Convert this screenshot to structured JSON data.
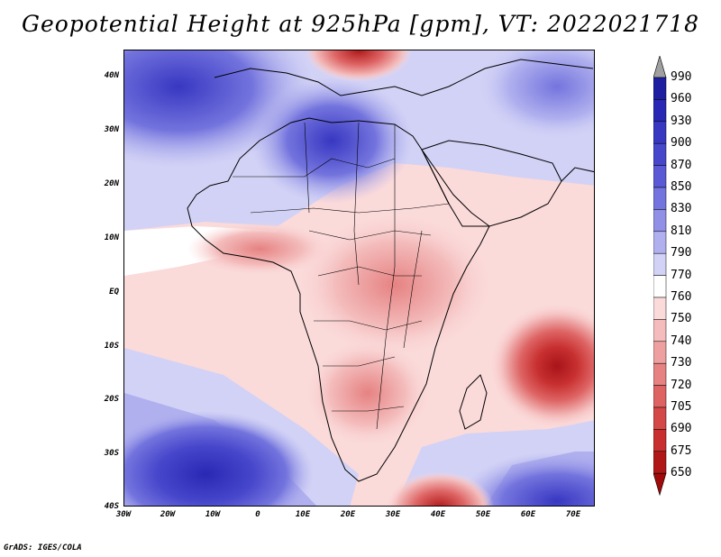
{
  "title": "Geopotential Height at 925hPa [gpm], VT: 2022021718",
  "credit": "GrADS: IGES/COLA",
  "lat_axis": {
    "labels": [
      "40N",
      "30N",
      "20N",
      "10N",
      "EQ",
      "10S",
      "20S",
      "30S",
      "40S"
    ],
    "values": [
      40,
      30,
      20,
      10,
      0,
      -10,
      -20,
      -30,
      -40
    ]
  },
  "lon_axis": {
    "labels": [
      "30W",
      "20W",
      "10W",
      "0",
      "10E",
      "20E",
      "30E",
      "40E",
      "50E",
      "60E",
      "70E"
    ],
    "values": [
      -30,
      -20,
      -10,
      0,
      10,
      20,
      30,
      40,
      50,
      60,
      70
    ]
  },
  "map_extent": {
    "lon_min": -30,
    "lon_max": 75,
    "lat_min": -40,
    "lat_max": 45
  },
  "colorbar": {
    "levels": [
      990,
      960,
      930,
      900,
      870,
      850,
      830,
      810,
      790,
      770,
      760,
      750,
      740,
      730,
      720,
      705,
      690,
      675,
      650
    ],
    "colors": [
      "#a0a0a0",
      "#1e1ea0",
      "#2828b4",
      "#3737c2",
      "#4747cc",
      "#5a5ad6",
      "#7474de",
      "#9090e6",
      "#b0b0ef",
      "#d2d2f6",
      "#ffffff",
      "#fbdada",
      "#f4bcbc",
      "#eea0a0",
      "#e68282",
      "#de6464",
      "#d44848",
      "#c83030",
      "#b01818",
      "#a00a0a"
    ]
  }
}
